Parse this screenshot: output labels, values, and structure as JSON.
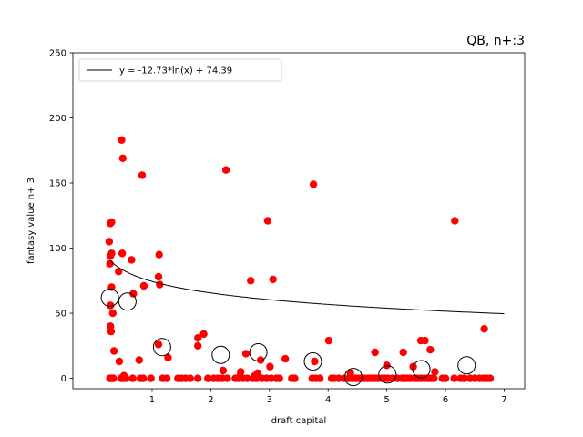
{
  "chart_data": {
    "type": "scatter",
    "title": "QB, n+:3",
    "xlabel": "draft capital",
    "ylabel": "fantasy value n+ 3",
    "xlim": [
      -0.35,
      7.35
    ],
    "ylim": [
      -8,
      250
    ],
    "xticks": [
      1,
      2,
      3,
      4,
      5,
      6,
      7
    ],
    "xtick_labels": [
      "1",
      "2",
      "3",
      "4",
      "5",
      "6",
      "7"
    ],
    "yticks": [
      0,
      50,
      100,
      150,
      200,
      250
    ],
    "ytick_labels": [
      "0",
      "50",
      "100",
      "150",
      "200",
      "250"
    ],
    "grid": false,
    "legend_position": "top-left",
    "colors": {
      "points": "#ff0000",
      "fit_line": "#000000",
      "bin_means": "#000000"
    },
    "fit": {
      "label": "y = -12.73*ln(x) + 74.39",
      "a": -12.73,
      "b": 74.39,
      "x_range": [
        0.28,
        7.0
      ]
    },
    "series": [
      {
        "type": "scatter",
        "points": [
          [
            0.28,
            0
          ],
          [
            0.3,
            0
          ],
          [
            0.32,
            0
          ],
          [
            0.34,
            0
          ],
          [
            0.47,
            0
          ],
          [
            0.5,
            0
          ],
          [
            0.55,
            0
          ],
          [
            0.67,
            0
          ],
          [
            0.8,
            0
          ],
          [
            0.85,
            0
          ],
          [
            0.98,
            0
          ],
          [
            1.18,
            0
          ],
          [
            1.25,
            0
          ],
          [
            1.44,
            0
          ],
          [
            1.5,
            0
          ],
          [
            1.57,
            0
          ],
          [
            1.65,
            0
          ],
          [
            1.78,
            0
          ],
          [
            1.95,
            0
          ],
          [
            2.05,
            0
          ],
          [
            2.12,
            0
          ],
          [
            2.2,
            0
          ],
          [
            2.28,
            0
          ],
          [
            2.42,
            0
          ],
          [
            2.47,
            0
          ],
          [
            2.55,
            0
          ],
          [
            2.62,
            0
          ],
          [
            2.72,
            0
          ],
          [
            2.78,
            0
          ],
          [
            2.87,
            0
          ],
          [
            2.95,
            0
          ],
          [
            3.03,
            0
          ],
          [
            3.12,
            0
          ],
          [
            3.17,
            0
          ],
          [
            3.38,
            0
          ],
          [
            3.43,
            0
          ],
          [
            3.73,
            0
          ],
          [
            3.79,
            0
          ],
          [
            3.86,
            0
          ],
          [
            4.06,
            0
          ],
          [
            4.1,
            0
          ],
          [
            4.18,
            0
          ],
          [
            4.27,
            0
          ],
          [
            4.35,
            0
          ],
          [
            4.41,
            0
          ],
          [
            4.47,
            0
          ],
          [
            4.52,
            0
          ],
          [
            4.56,
            0
          ],
          [
            4.62,
            0
          ],
          [
            4.68,
            0
          ],
          [
            4.73,
            0
          ],
          [
            4.8,
            0
          ],
          [
            4.85,
            0
          ],
          [
            4.92,
            0
          ],
          [
            4.97,
            0
          ],
          [
            5.02,
            0
          ],
          [
            5.1,
            0
          ],
          [
            5.18,
            0
          ],
          [
            5.26,
            0
          ],
          [
            5.3,
            0
          ],
          [
            5.34,
            0
          ],
          [
            5.4,
            0
          ],
          [
            5.47,
            0
          ],
          [
            5.52,
            0
          ],
          [
            5.58,
            0
          ],
          [
            5.64,
            0
          ],
          [
            5.7,
            0
          ],
          [
            5.75,
            0
          ],
          [
            5.8,
            0
          ],
          [
            5.95,
            0
          ],
          [
            6.0,
            0
          ],
          [
            6.15,
            0
          ],
          [
            6.26,
            0
          ],
          [
            6.32,
            0
          ],
          [
            6.42,
            0
          ],
          [
            6.5,
            0
          ],
          [
            6.58,
            0
          ],
          [
            6.65,
            0
          ],
          [
            6.7,
            0
          ],
          [
            6.76,
            0
          ],
          [
            0.29,
            119
          ],
          [
            0.31,
            120
          ],
          [
            0.27,
            105
          ],
          [
            0.31,
            96
          ],
          [
            0.29,
            94
          ],
          [
            0.28,
            88
          ],
          [
            0.31,
            70
          ],
          [
            0.29,
            56
          ],
          [
            0.29,
            40
          ],
          [
            0.3,
            36
          ],
          [
            0.33,
            50
          ],
          [
            0.35,
            21
          ],
          [
            0.44,
            13
          ],
          [
            0.43,
            82
          ],
          [
            0.48,
            183
          ],
          [
            0.5,
            169
          ],
          [
            0.49,
            96
          ],
          [
            0.65,
            91
          ],
          [
            0.68,
            65
          ],
          [
            0.78,
            14
          ],
          [
            0.83,
            156
          ],
          [
            0.86,
            71
          ],
          [
            1.12,
            95
          ],
          [
            1.11,
            78
          ],
          [
            1.13,
            72
          ],
          [
            1.11,
            26
          ],
          [
            1.27,
            16
          ],
          [
            1.78,
            31
          ],
          [
            1.78,
            25
          ],
          [
            1.88,
            34
          ],
          [
            2.26,
            160
          ],
          [
            2.21,
            6
          ],
          [
            2.51,
            5
          ],
          [
            2.6,
            19
          ],
          [
            2.68,
            75
          ],
          [
            2.8,
            4
          ],
          [
            2.85,
            14
          ],
          [
            2.97,
            121
          ],
          [
            3.01,
            9
          ],
          [
            3.06,
            76
          ],
          [
            3.27,
            15
          ],
          [
            3.75,
            149
          ],
          [
            3.77,
            13
          ],
          [
            4.01,
            29
          ],
          [
            4.38,
            4
          ],
          [
            4.8,
            20
          ],
          [
            5.0,
            10
          ],
          [
            5.28,
            20
          ],
          [
            5.45,
            9
          ],
          [
            5.58,
            29
          ],
          [
            5.65,
            29
          ],
          [
            5.74,
            22
          ],
          [
            5.82,
            5
          ],
          [
            6.16,
            121
          ],
          [
            6.66,
            38
          ],
          [
            0.52,
            2
          ],
          [
            2.75,
            2
          ],
          [
            2.5,
            2
          ]
        ]
      },
      {
        "type": "bin_means",
        "points": [
          [
            0.28,
            62
          ],
          [
            0.58,
            59
          ],
          [
            1.17,
            24
          ],
          [
            2.17,
            18
          ],
          [
            2.81,
            20
          ],
          [
            3.74,
            13
          ],
          [
            4.43,
            1
          ],
          [
            5.01,
            3
          ],
          [
            5.59,
            7
          ],
          [
            6.36,
            10
          ]
        ]
      }
    ]
  }
}
